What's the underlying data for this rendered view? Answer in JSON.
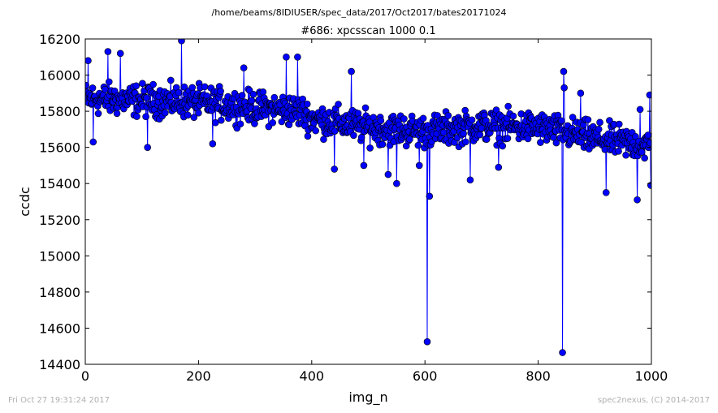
{
  "header": {
    "path": "/home/beams/8IDIUSER/spec_data/2017/Oct2017/bates20171024"
  },
  "footer": {
    "timestamp": "Fri Oct 27 19:31:24 2017",
    "credit": "spec2nexus, (C) 2014-2017"
  },
  "chart_data": {
    "type": "line",
    "title": "#686: xpcsscan 1000 0.1",
    "xlabel": "img_n",
    "ylabel": "ccdc",
    "xlim": [
      0,
      1000
    ],
    "ylim": [
      14400,
      16200
    ],
    "xticks": [
      0,
      200,
      400,
      600,
      800,
      1000
    ],
    "yticks": [
      14400,
      14600,
      14800,
      15000,
      15200,
      15400,
      15600,
      15800,
      16000,
      16200
    ],
    "xtick_labels": [
      "0",
      "200",
      "400",
      "600",
      "800",
      "1000"
    ],
    "ytick_labels": [
      "14400",
      "14600",
      "14800",
      "15000",
      "15200",
      "15400",
      "15600",
      "15800",
      "16000",
      "16200"
    ],
    "grid": false,
    "legend": "none",
    "marker": "circle",
    "series_color": "#0000ff",
    "num_points": 1000,
    "trend": [
      [
        0,
        15870
      ],
      [
        100,
        15860
      ],
      [
        200,
        15850
      ],
      [
        300,
        15820
      ],
      [
        380,
        15800
      ],
      [
        400,
        15760
      ],
      [
        500,
        15710
      ],
      [
        600,
        15690
      ],
      [
        700,
        15720
      ],
      [
        800,
        15710
      ],
      [
        900,
        15650
      ],
      [
        1000,
        15610
      ]
    ],
    "noise_amplitude": 130,
    "outliers": [
      {
        "x": 5,
        "y": 16080
      },
      {
        "x": 14,
        "y": 15630
      },
      {
        "x": 40,
        "y": 16130
      },
      {
        "x": 62,
        "y": 16120
      },
      {
        "x": 110,
        "y": 15600
      },
      {
        "x": 170,
        "y": 16190
      },
      {
        "x": 225,
        "y": 15620
      },
      {
        "x": 280,
        "y": 16040
      },
      {
        "x": 355,
        "y": 16100
      },
      {
        "x": 375,
        "y": 16100
      },
      {
        "x": 440,
        "y": 15480
      },
      {
        "x": 470,
        "y": 16020
      },
      {
        "x": 492,
        "y": 15500
      },
      {
        "x": 535,
        "y": 15450
      },
      {
        "x": 550,
        "y": 15400
      },
      {
        "x": 590,
        "y": 15500
      },
      {
        "x": 604,
        "y": 14525
      },
      {
        "x": 608,
        "y": 15330
      },
      {
        "x": 680,
        "y": 15420
      },
      {
        "x": 730,
        "y": 15490
      },
      {
        "x": 795,
        "y": 15680
      },
      {
        "x": 843,
        "y": 14465
      },
      {
        "x": 845,
        "y": 16020
      },
      {
        "x": 846,
        "y": 15930
      },
      {
        "x": 875,
        "y": 15900
      },
      {
        "x": 920,
        "y": 15350
      },
      {
        "x": 975,
        "y": 15310
      },
      {
        "x": 980,
        "y": 15810
      },
      {
        "x": 997,
        "y": 15890
      },
      {
        "x": 999,
        "y": 15390
      }
    ]
  }
}
